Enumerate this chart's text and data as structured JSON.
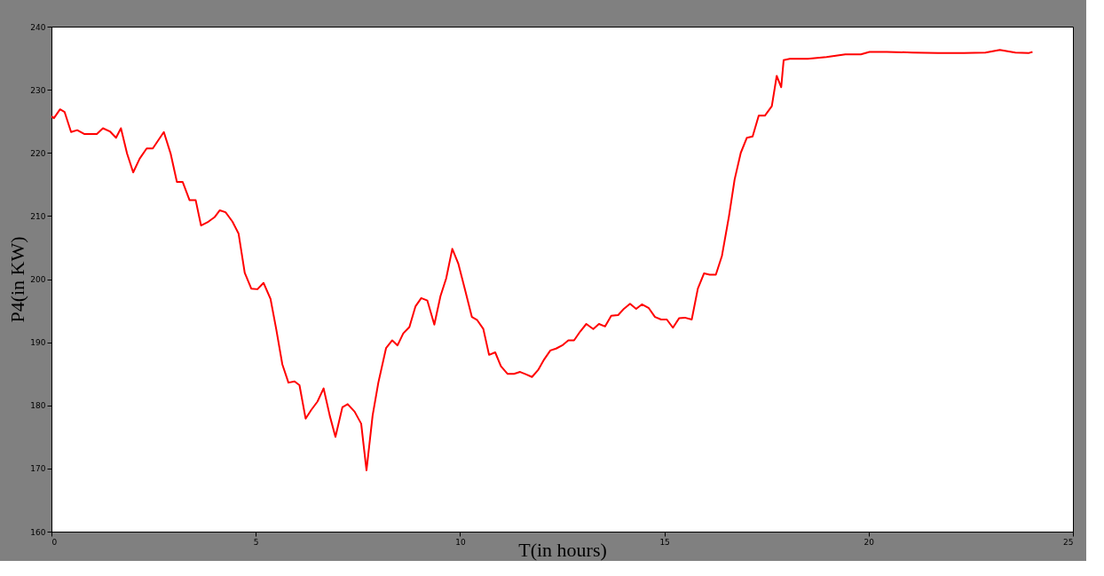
{
  "chart_data": {
    "type": "line",
    "xlabel": "T(in hours)",
    "ylabel": "P4(in KW)",
    "xlim": [
      0,
      25
    ],
    "xticks": [
      0,
      5,
      10,
      15,
      20,
      25
    ],
    "ylim": [
      160,
      240
    ],
    "yticks": [
      160,
      170,
      180,
      190,
      200,
      210,
      220,
      230,
      240
    ],
    "grid": false,
    "marker": "none",
    "line_style": "solid",
    "series": [
      {
        "color": "#ff0000",
        "x": [
          0,
          0.06,
          0.21,
          0.32,
          0.48,
          0.63,
          0.8,
          1.11,
          1.26,
          1.43,
          1.58,
          1.7,
          1.85,
          2.0,
          2.16,
          2.33,
          2.48,
          2.75,
          2.92,
          3.07,
          3.21,
          3.38,
          3.53,
          3.66,
          3.84,
          3.99,
          4.12,
          4.26,
          4.43,
          4.58,
          4.73,
          4.89,
          5.04,
          5.19,
          5.36,
          5.5,
          5.65,
          5.8,
          5.95,
          6.07,
          6.22,
          6.36,
          6.51,
          6.66,
          6.81,
          6.95,
          7.12,
          7.25,
          7.42,
          7.58,
          7.71,
          7.86,
          8.0,
          8.19,
          8.34,
          8.47,
          8.61,
          8.76,
          8.91,
          9.05,
          9.2,
          9.37,
          9.52,
          9.66,
          9.81,
          9.96,
          10.13,
          10.29,
          10.42,
          10.57,
          10.71,
          10.86,
          11.0,
          11.16,
          11.32,
          11.47,
          11.62,
          11.76,
          11.91,
          12.06,
          12.21,
          12.35,
          12.5,
          12.65,
          12.79,
          12.94,
          13.09,
          13.26,
          13.4,
          13.55,
          13.7,
          13.87,
          14.01,
          14.16,
          14.31,
          14.45,
          14.62,
          14.77,
          14.92,
          15.06,
          15.21,
          15.36,
          15.5,
          15.67,
          15.82,
          15.97,
          16.11,
          16.26,
          16.41,
          16.58,
          16.72,
          16.87,
          17.02,
          17.16,
          17.31,
          17.46,
          17.63,
          17.75,
          17.86,
          17.92,
          18.07,
          18.51,
          18.97,
          19.43,
          19.81,
          20.02,
          20.44,
          21.07,
          21.7,
          22.33,
          22.86,
          23.21,
          23.59,
          23.91,
          24.01
        ],
        "values": [
          225.8,
          225.5,
          226.9,
          226.5,
          223.3,
          223.6,
          223,
          223,
          223.9,
          223.4,
          222.4,
          223.9,
          219.9,
          216.9,
          219.1,
          220.7,
          220.7,
          223.3,
          219.8,
          215.4,
          215.4,
          212.5,
          212.5,
          208.5,
          209.1,
          209.8,
          210.9,
          210.6,
          209.1,
          207.2,
          201,
          198.5,
          198.4,
          199.4,
          196.9,
          192.1,
          186.5,
          183.6,
          183.8,
          183.2,
          177.9,
          179.3,
          180.6,
          182.7,
          178.4,
          175,
          179.7,
          180.2,
          179,
          177.1,
          169.7,
          178.4,
          183.6,
          189.1,
          190.3,
          189.5,
          191.4,
          192.4,
          195.7,
          197,
          196.6,
          192.8,
          197.3,
          200.1,
          204.8,
          202.4,
          198.1,
          194,
          193.5,
          192.1,
          188,
          188.4,
          186.2,
          185,
          185,
          185.3,
          184.9,
          184.5,
          185.6,
          187.3,
          188.7,
          189,
          189.5,
          190.3,
          190.3,
          191.7,
          192.9,
          192.1,
          192.9,
          192.5,
          194.2,
          194.3,
          195.3,
          196.1,
          195.3,
          196,
          195.4,
          194,
          193.6,
          193.6,
          192.3,
          193.8,
          193.9,
          193.6,
          198.5,
          200.9,
          200.7,
          200.7,
          203.7,
          209.9,
          215.8,
          220,
          222.4,
          222.6,
          225.9,
          225.9,
          227.4,
          232.2,
          230.4,
          234.7,
          234.9,
          234.9,
          235.2,
          235.6,
          235.6,
          236,
          236,
          235.9,
          235.8,
          235.8,
          235.9,
          236.3,
          235.9,
          235.8,
          236
        ]
      }
    ]
  }
}
